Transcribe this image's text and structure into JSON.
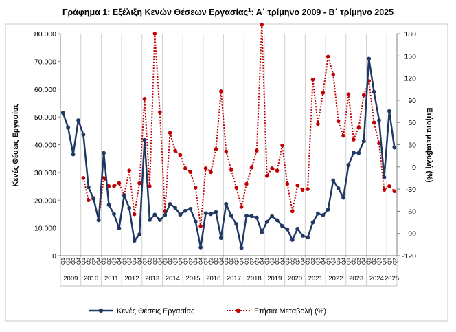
{
  "chart_data": {
    "type": "line",
    "title": "Γράφημα 1: Εξέλιξη Κενών Θέσεων Εργασίας",
    "title_superscript": "1",
    "title_suffix": ": Α΄ τρίμηνο 2009 - Β΄ τρίμηνο 2025",
    "ylabel_left": "Κενές Θέσεις Εργασίας",
    "ylabel_right": "Ετήσια μεταβολή (%)",
    "ylim_left": [
      0,
      80000
    ],
    "ylim_right": [
      -120,
      180
    ],
    "yticks_left": [
      "0",
      "10.000",
      "20.000",
      "30.000",
      "40.000",
      "50.000",
      "60.000",
      "70.000",
      "80.000"
    ],
    "yticks_right": [
      "-120",
      "-90",
      "-60",
      "-30",
      "0",
      "30",
      "60",
      "90",
      "120",
      "150",
      "180"
    ],
    "quarter_labels": [
      "Q1",
      "Q2",
      "Q3",
      "Q4"
    ],
    "years": [
      "2009",
      "2010",
      "2011",
      "2012",
      "2013",
      "2014",
      "2015",
      "2016",
      "2017",
      "2018",
      "2019",
      "2020",
      "2021",
      "2022",
      "2023",
      "2024",
      "2025"
    ],
    "grid": "vertical-year-lines",
    "legend_position": "bottom",
    "colors": {
      "series": "#1f3864",
      "change": "#c00000",
      "grid": "#d0d0d0"
    },
    "series": [
      {
        "name": "Κενές Θέσεις Εργασίας",
        "axis": "left",
        "style": "solid-line-dot-markers",
        "values": [
          51500,
          46200,
          36500,
          48800,
          43600,
          24700,
          20500,
          12800,
          37000,
          18300,
          15000,
          9900,
          21700,
          17200,
          5400,
          7700,
          41700,
          12900,
          14800,
          12900,
          14600,
          18600,
          17300,
          14800,
          16200,
          16900,
          12300,
          3000,
          15300,
          15000,
          15700,
          6400,
          18600,
          14400,
          11400,
          2800,
          14400,
          14300,
          13700,
          8400,
          12200,
          14300,
          12800,
          10700,
          9500,
          5700,
          9700,
          7200,
          6600,
          12000,
          15200,
          14600,
          16600,
          27100,
          24300,
          20900,
          32700,
          37100,
          37000,
          41300,
          71000,
          59000,
          48800,
          28300,
          52100,
          39000
        ]
      },
      {
        "name": "Ετήσια Μεταβολή (%)",
        "axis": "right",
        "style": "dotted-line-dot-markers",
        "values": [
          null,
          null,
          null,
          null,
          -15,
          -45,
          -42,
          -72,
          -15,
          -26,
          -26,
          -22,
          -38,
          -5,
          -64,
          -22,
          92,
          -26,
          180,
          74,
          -60,
          46,
          22,
          16,
          -2,
          -7,
          -28,
          -80,
          -2,
          -7,
          24,
          102,
          21,
          -4,
          -28,
          -54,
          -23,
          -1,
          22,
          192,
          -12,
          -2,
          -5,
          29,
          -23,
          -60,
          -25,
          -31,
          -30,
          118,
          58,
          100,
          149,
          125,
          62,
          42,
          98,
          37,
          53,
          97,
          116,
          60,
          32,
          -31,
          -26,
          -33
        ]
      }
    ]
  }
}
